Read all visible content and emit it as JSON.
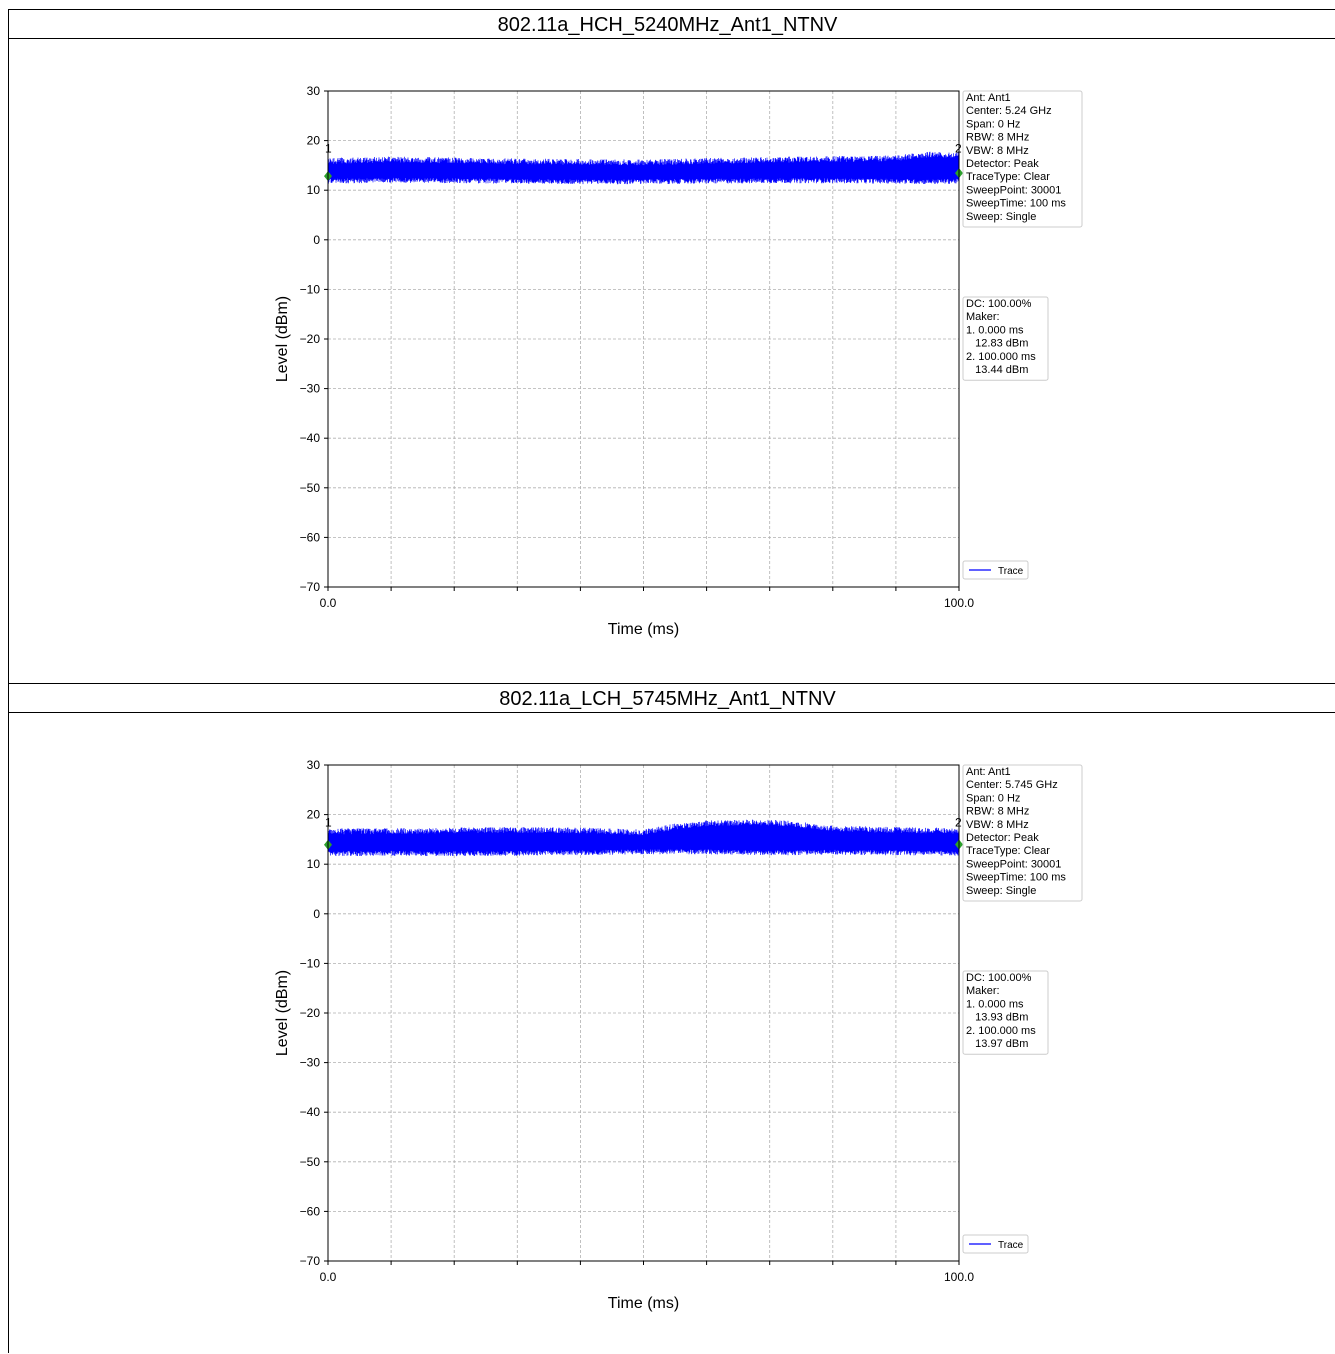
{
  "sections": [
    {
      "title": "802.11a_HCH_5240MHz_Ant1_NTNV",
      "chart_data": {
        "type": "line",
        "xlabel": "Time (ms)",
        "ylabel": "Level (dBm)",
        "xlim": [
          0.0,
          100.0
        ],
        "ylim": [
          -70,
          30
        ],
        "x_tick_labels": [
          "0.0",
          "100.0"
        ],
        "x_minor_ticks": [
          10,
          20,
          30,
          40,
          50,
          60,
          70,
          80,
          90
        ],
        "y_ticks": [
          30,
          20,
          10,
          0,
          -10,
          -20,
          -30,
          -40,
          -50,
          -60,
          -70
        ],
        "y_tick_labels": [
          "30",
          "20",
          "10",
          "0",
          "−10",
          "−20",
          "−30",
          "−40",
          "−50",
          "−60",
          "−70"
        ],
        "grid": true,
        "legend": {
          "placement": "lower-right-outside",
          "entries": [
            "Trace"
          ]
        },
        "series": [
          {
            "name": "Trace",
            "color": "#0000ff",
            "x": [
              0,
              10,
              20,
              30,
              40,
              50,
              60,
              70,
              80,
              90,
              95,
              100
            ],
            "y_peak": [
              16.5,
              16.8,
              16.6,
              16.4,
              16.3,
              16.2,
              16.5,
              16.7,
              16.9,
              17.0,
              17.8,
              17.6
            ],
            "y_min": [
              11.3,
              11.5,
              11.4,
              11.3,
              11.2,
              11.2,
              11.3,
              11.4,
              11.4,
              11.3,
              11.2,
              11.3
            ]
          }
        ],
        "markers": [
          {
            "label": "1",
            "x": 0.0,
            "y": 12.83
          },
          {
            "label": "2",
            "x": 100.0,
            "y": 13.44
          }
        ],
        "settings_lines": [
          "Ant: Ant1",
          "Center: 5.24 GHz",
          "Span: 0 Hz",
          "RBW: 8 MHz",
          "VBW: 8 MHz",
          "Detector: Peak",
          "TraceType: Clear",
          "SweepPoint: 30001",
          "SweepTime: 100 ms",
          "Sweep: Single"
        ],
        "marker_lines": [
          "DC: 100.00%",
          "Maker:",
          "1. 0.000 ms",
          "    12.83 dBm",
          "2. 100.000 ms",
          "    13.44 dBm"
        ]
      }
    },
    {
      "title": "802.11a_LCH_5745MHz_Ant1_NTNV",
      "chart_data": {
        "type": "line",
        "xlabel": "Time (ms)",
        "ylabel": "Level (dBm)",
        "xlim": [
          0.0,
          100.0
        ],
        "ylim": [
          -70,
          30
        ],
        "x_tick_labels": [
          "0.0",
          "100.0"
        ],
        "x_minor_ticks": [
          10,
          20,
          30,
          40,
          50,
          60,
          70,
          80,
          90
        ],
        "y_ticks": [
          30,
          20,
          10,
          0,
          -10,
          -20,
          -30,
          -40,
          -50,
          -60,
          -70
        ],
        "y_tick_labels": [
          "30",
          "20",
          "10",
          "0",
          "−10",
          "−20",
          "−30",
          "−40",
          "−50",
          "−60",
          "−70"
        ],
        "grid": true,
        "legend": {
          "placement": "lower-right-outside",
          "entries": [
            "Trace"
          ]
        },
        "series": [
          {
            "name": "Trace",
            "color": "#0000ff",
            "x": [
              0,
              10,
              20,
              30,
              40,
              50,
              55,
              60,
              65,
              70,
              73,
              80,
              90,
              100
            ],
            "y_peak": [
              17.2,
              17.3,
              17.4,
              17.5,
              17.4,
              17.0,
              18.2,
              18.8,
              19.0,
              19.0,
              18.8,
              17.8,
              17.5,
              17.3
            ],
            "y_min": [
              11.6,
              11.7,
              11.6,
              11.7,
              11.8,
              12.0,
              12.0,
              12.0,
              11.9,
              11.8,
              11.8,
              11.9,
              11.8,
              11.7
            ]
          }
        ],
        "markers": [
          {
            "label": "1",
            "x": 0.0,
            "y": 13.93
          },
          {
            "label": "2",
            "x": 100.0,
            "y": 13.97
          }
        ],
        "settings_lines": [
          "Ant: Ant1",
          "Center: 5.745 GHz",
          "Span: 0 Hz",
          "RBW: 8 MHz",
          "VBW: 8 MHz",
          "Detector: Peak",
          "TraceType: Clear",
          "SweepPoint: 30001",
          "SweepTime: 100 ms",
          "Sweep: Single"
        ],
        "marker_lines": [
          "DC: 100.00%",
          "Maker:",
          "1. 0.000 ms",
          "    13.93 dBm",
          "2. 100.000 ms",
          "    13.97 dBm"
        ]
      }
    }
  ]
}
